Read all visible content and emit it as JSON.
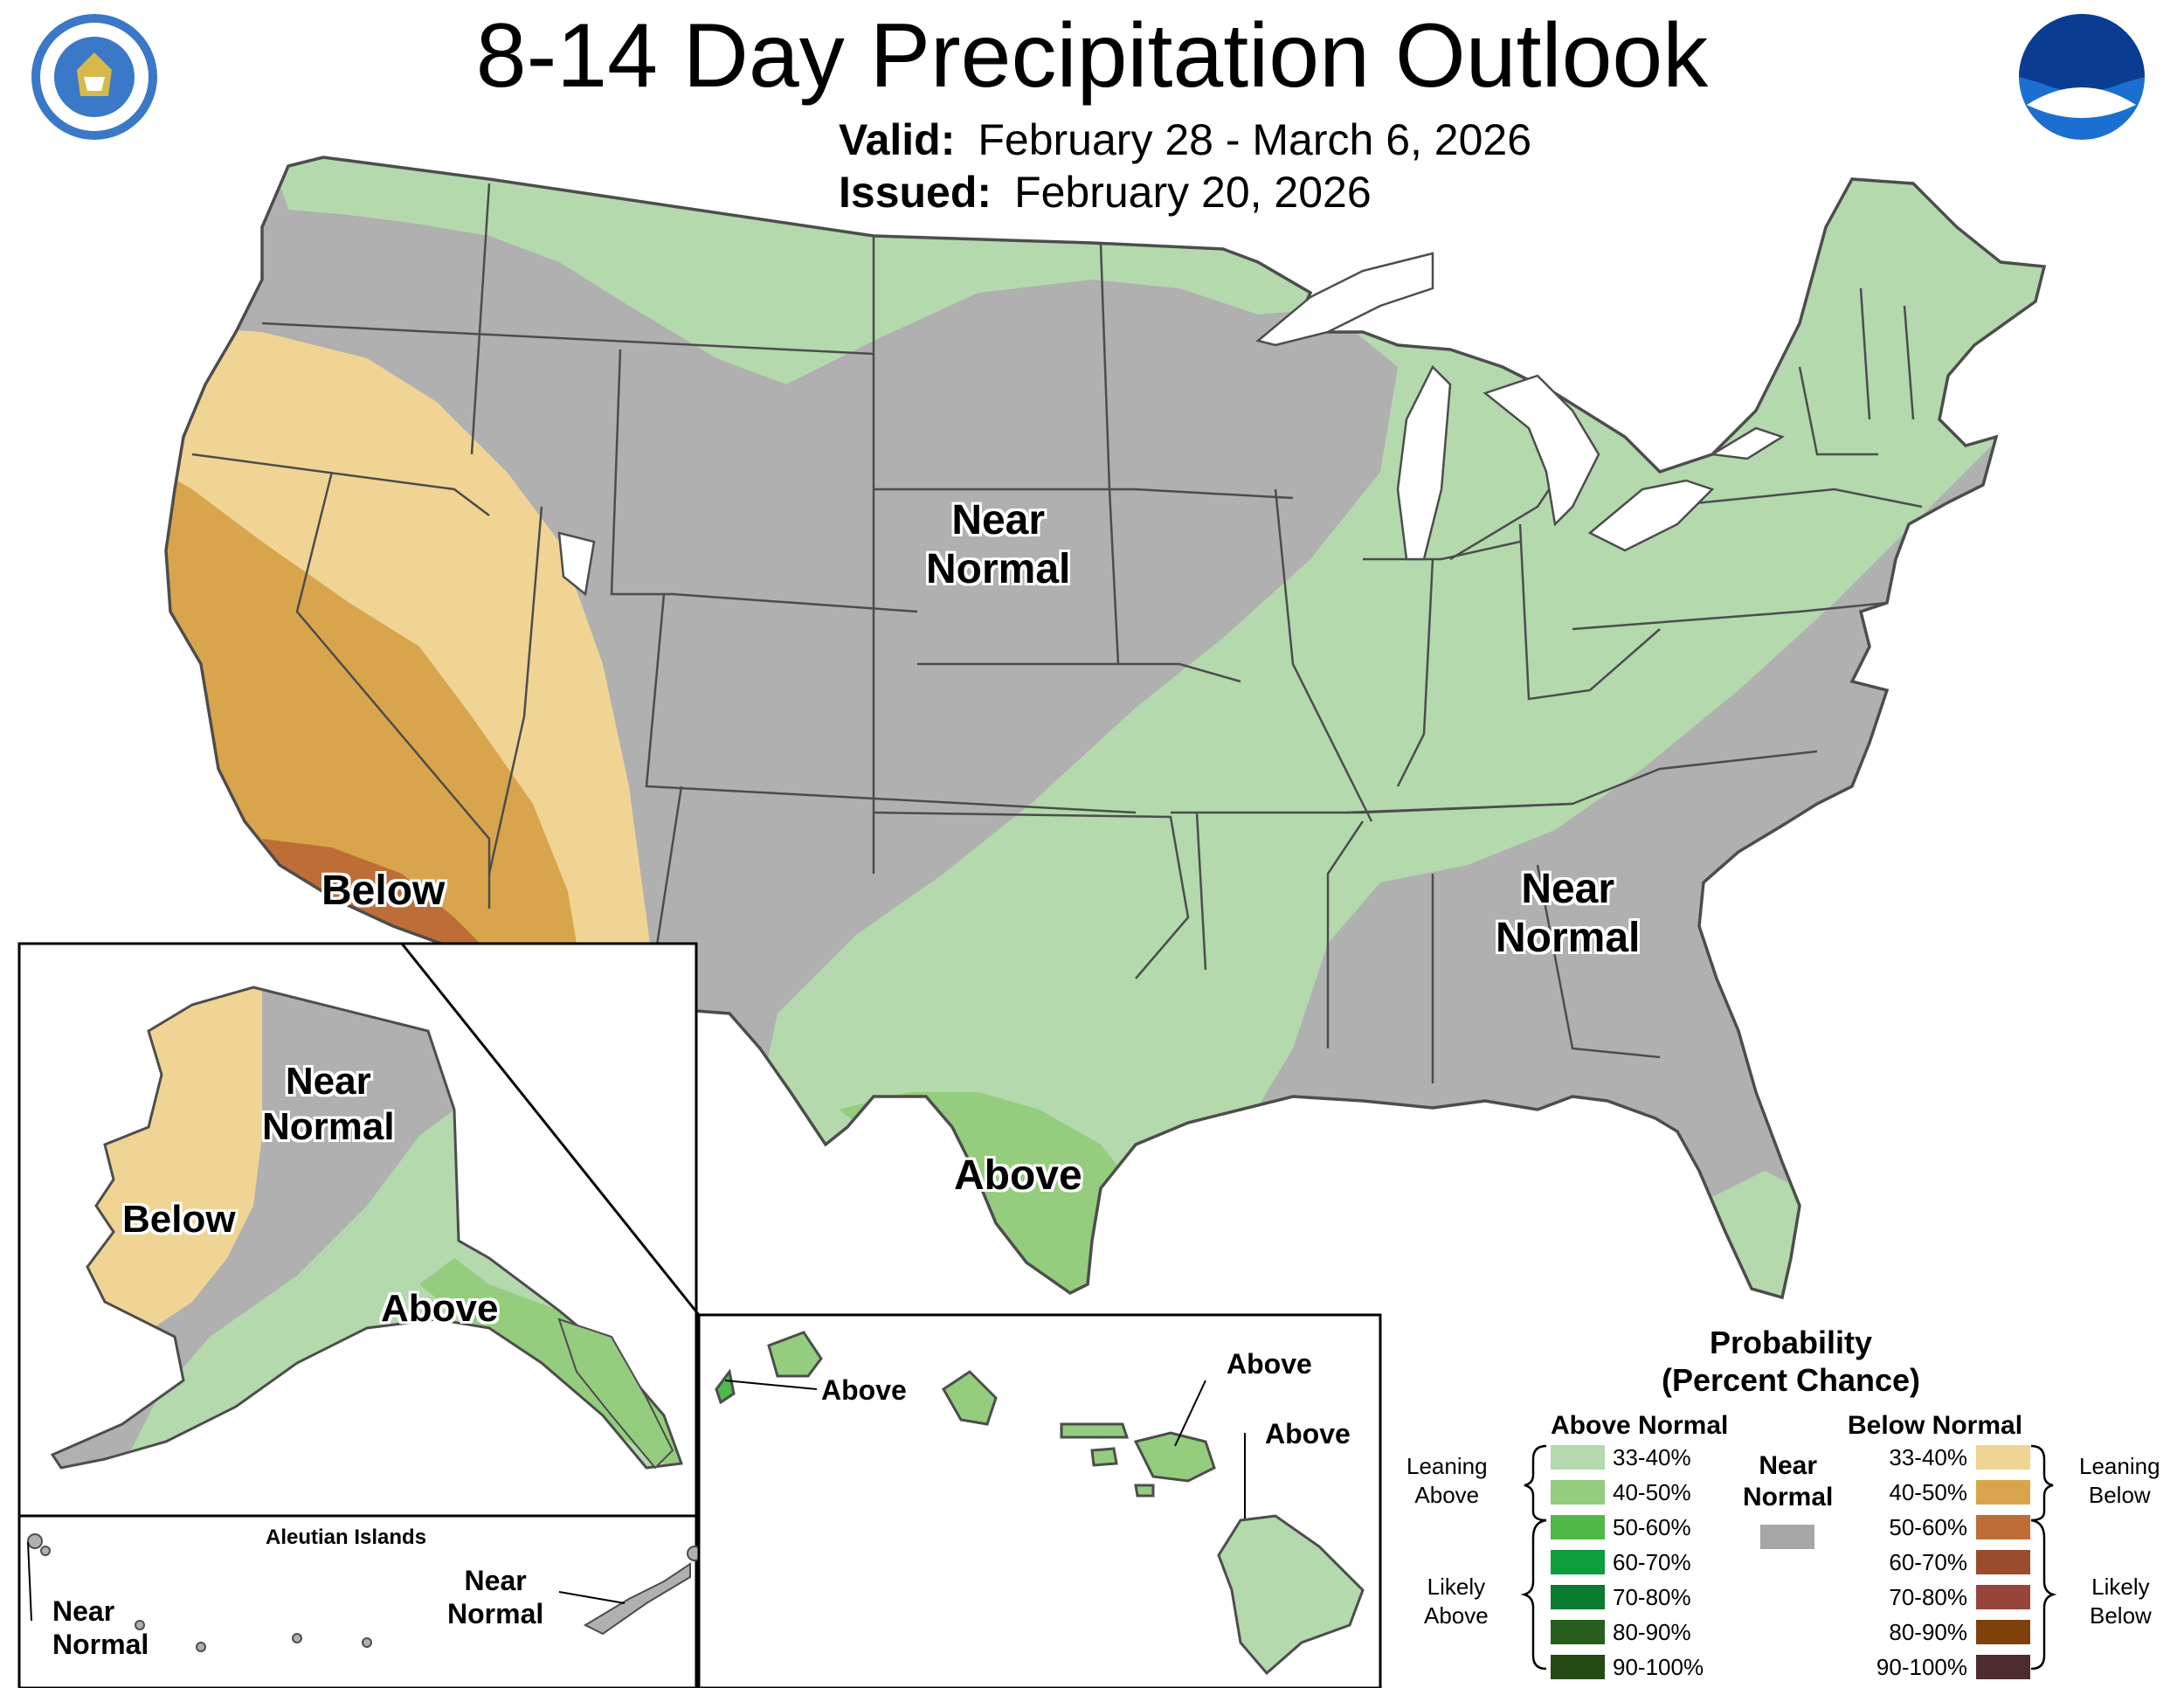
{
  "header": {
    "title": "8-14 Day Precipitation Outlook",
    "valid_label": "Valid:",
    "valid_value": "February 28 - March 6, 2026",
    "issued_label": "Issued:",
    "issued_value": "February 20, 2026"
  },
  "logos": {
    "commerce_seal": "DEPARTMENT OF COMMERCE · UNITED STATES OF AMERICA",
    "noaa": "NOAA"
  },
  "map_labels": {
    "conus_north_near_normal": "Near\nNormal",
    "conus_southeast_near_normal": "Near\nNormal",
    "conus_below": "Below",
    "conus_above": "Above",
    "alaska_near_normal": "Near\nNormal",
    "alaska_below": "Below",
    "alaska_above": "Above",
    "aleutian_title": "Aleutian Islands",
    "aleutian_west_near_normal": "Near\nNormal",
    "aleutian_east_near_normal": "Near\nNormal",
    "hawaii_kauai_above": "Above",
    "hawaii_maui_above": "Above",
    "hawaii_big_island_above": "Above"
  },
  "legend": {
    "title_line1": "Probability",
    "title_line2": "(Percent Chance)",
    "above_header": "Above Normal",
    "below_header": "Below Normal",
    "near_header": "Near\nNormal",
    "leaning_above": "Leaning\nAbove",
    "likely_above": "Likely\nAbove",
    "leaning_below": "Leaning\nBelow",
    "likely_below": "Likely\nBelow",
    "above_rows": [
      {
        "range": "33-40%",
        "color": "#b3d9ad"
      },
      {
        "range": "40-50%",
        "color": "#93cd7d"
      },
      {
        "range": "50-60%",
        "color": "#4fb847"
      },
      {
        "range": "60-70%",
        "color": "#0d9d3c"
      },
      {
        "range": "70-80%",
        "color": "#0a7a2e"
      },
      {
        "range": "80-90%",
        "color": "#275e1e"
      },
      {
        "range": "90-100%",
        "color": "#254a13"
      }
    ],
    "below_rows": [
      {
        "range": "33-40%",
        "color": "#f0d494"
      },
      {
        "range": "40-50%",
        "color": "#d9a54c"
      },
      {
        "range": "50-60%",
        "color": "#bf6d37"
      },
      {
        "range": "60-70%",
        "color": "#9b4c2d"
      },
      {
        "range": "70-80%",
        "color": "#97453b"
      },
      {
        "range": "80-90%",
        "color": "#7f4009"
      },
      {
        "range": "90-100%",
        "color": "#4d2b2e"
      }
    ],
    "near_color": "#a6a6a6"
  },
  "colors": {
    "near_normal": "#b0b0b0",
    "above_leaning": "#b3d9ad",
    "above_40_50": "#93cd7d",
    "below_leaning": "#f0d494",
    "below_40_50": "#d9a54c",
    "below_50_60": "#bf6d37",
    "state_border": "#4d4d4d",
    "great_lakes": "#ffffff"
  }
}
